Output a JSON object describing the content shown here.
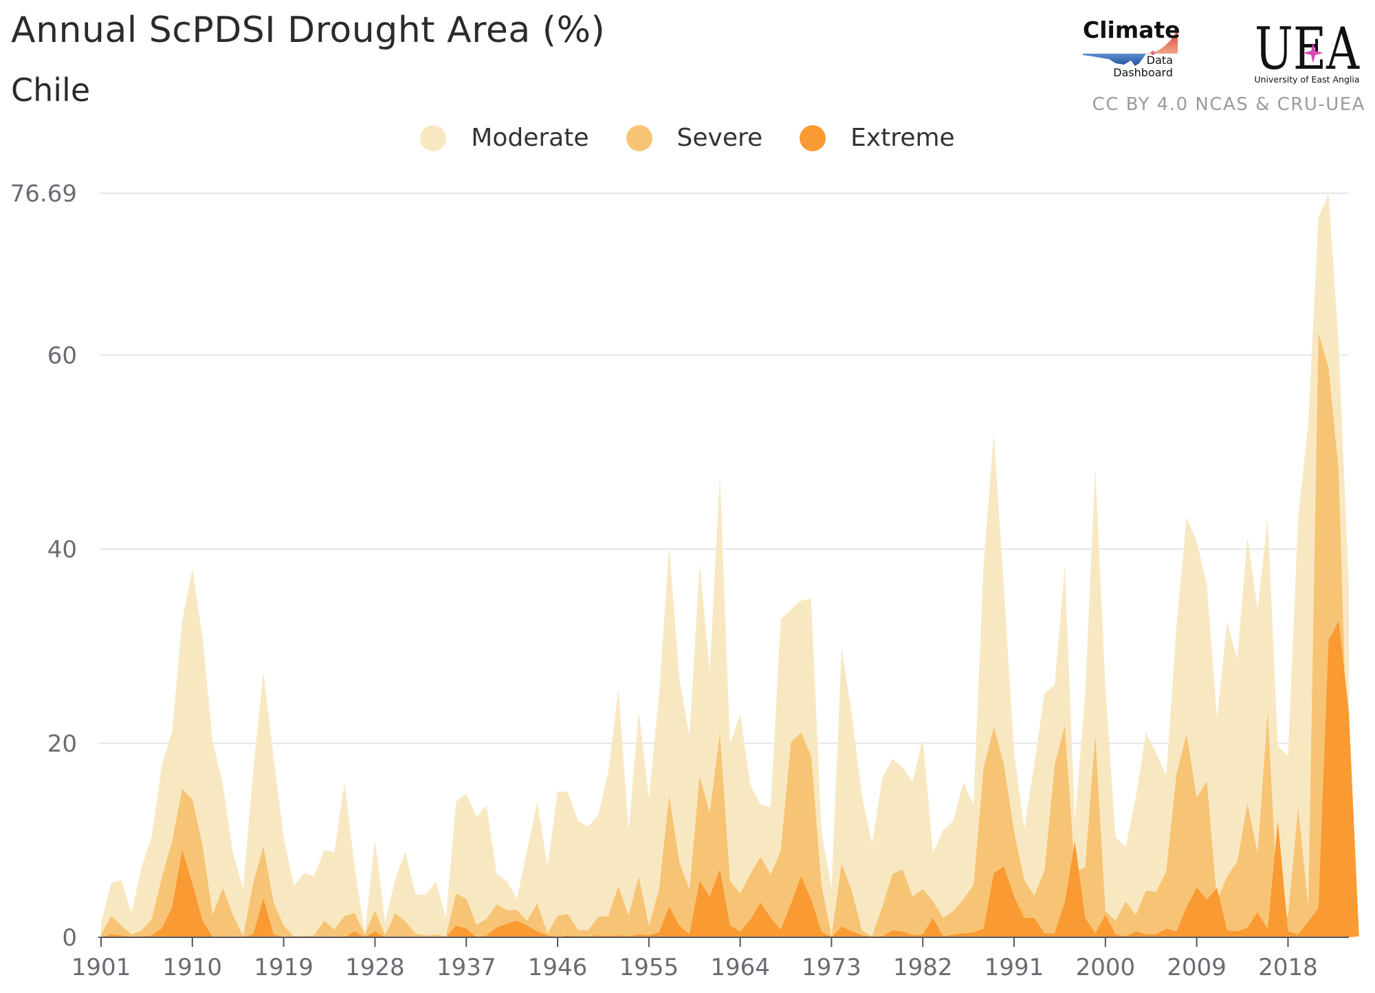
{
  "header": {
    "title": "Annual ScPDSI Drought Area (%)",
    "subtitle": "Chile",
    "credit": "CC BY 4.0 NCAS & CRU-UEA"
  },
  "logos": {
    "climate_word": "Climate",
    "data_word": "Data",
    "dashboard_word": "Dashboard",
    "uea_letters": "UEA",
    "uea_caption": "University of East Anglia"
  },
  "chart_data": {
    "type": "area",
    "title": "Annual ScPDSI Drought Area (%)",
    "subtitle": "Chile",
    "xlabel": "",
    "ylabel": "",
    "ylim": [
      0,
      76.69
    ],
    "yticks": [
      0,
      20,
      40,
      60,
      76.69
    ],
    "ytick_labels": [
      "0",
      "20",
      "40",
      "60",
      "76.69"
    ],
    "xticks": [
      1901,
      1910,
      1919,
      1928,
      1937,
      1946,
      1955,
      1964,
      1973,
      1982,
      1991,
      2000,
      2009,
      2018
    ],
    "xtick_labels": [
      "1901",
      "1910",
      "1919",
      "1928",
      "1937",
      "1946",
      "1955",
      "1964",
      "1973",
      "1982",
      "1991",
      "2000",
      "2009",
      "2018"
    ],
    "legend_position": "top-center",
    "grid": true,
    "colors": {
      "Moderate": "#f8e8c2",
      "Severe": "#f7c475",
      "Extreme": "#f99a33"
    },
    "start_year": 1901,
    "series": [
      {
        "name": "Moderate",
        "values": [
          1.5,
          5.6,
          5.9,
          2.5,
          7.3,
          10.4,
          17.8,
          21.2,
          32.6,
          38.0,
          30.9,
          20.2,
          15.8,
          8.7,
          5.0,
          17.2,
          27.4,
          18.6,
          10.3,
          5.3,
          6.6,
          6.3,
          9.0,
          8.8,
          16.0,
          7.2,
          0.5,
          10.0,
          1.6,
          6.0,
          8.8,
          4.4,
          4.4,
          5.7,
          2.0,
          14.0,
          14.8,
          12.4,
          13.6,
          6.5,
          5.8,
          4.0,
          9.0,
          14.0,
          7.3,
          15.0,
          15.0,
          12.0,
          11.4,
          12.6,
          17.0,
          25.6,
          11.0,
          23.3,
          14.3,
          25.0,
          40.3,
          26.7,
          20.7,
          38.4,
          27.5,
          47.6,
          19.9,
          23.0,
          15.7,
          13.7,
          13.4,
          32.8,
          33.8,
          34.7,
          34.9,
          11.1,
          5.0,
          29.8,
          23.0,
          14.6,
          9.6,
          16.4,
          18.4,
          17.5,
          16.0,
          20.5,
          8.7,
          11.0,
          12.0,
          16.0,
          13.7,
          38.6,
          51.9,
          35.9,
          19.0,
          11.2,
          17.9,
          25.2,
          26.0,
          38.2,
          12.0,
          25.0,
          48.3,
          25.8,
          10.3,
          9.3,
          14.4,
          21.1,
          19.0,
          16.7,
          32.0,
          43.3,
          40.8,
          36.3,
          22.6,
          32.5,
          28.7,
          41.2,
          33.8,
          43.2,
          19.7,
          18.7,
          43.3,
          53.0,
          74.2,
          76.6,
          61.0,
          36.1
        ]
      },
      {
        "name": "Severe",
        "values": [
          0.3,
          2.2,
          1.2,
          0.3,
          0.7,
          1.9,
          6.2,
          9.9,
          15.3,
          14.2,
          9.5,
          2.3,
          5.1,
          2.3,
          0.1,
          5.6,
          9.4,
          3.6,
          1.2,
          0.1,
          0.1,
          0.2,
          1.7,
          0.8,
          2.2,
          2.5,
          0.3,
          2.8,
          0.2,
          2.5,
          1.6,
          0.4,
          0.2,
          0.3,
          0.1,
          4.5,
          4.0,
          1.3,
          1.9,
          3.4,
          2.8,
          2.8,
          1.7,
          3.5,
          0.4,
          2.2,
          2.4,
          0.8,
          0.7,
          2.1,
          2.2,
          5.3,
          2.2,
          6.3,
          1.2,
          4.9,
          14.6,
          7.8,
          4.9,
          16.6,
          12.8,
          21.1,
          5.8,
          4.5,
          6.5,
          8.3,
          6.5,
          8.9,
          20.1,
          21.1,
          18.7,
          5.5,
          0.1,
          7.6,
          4.8,
          0.7,
          0.1,
          3.1,
          6.5,
          7.0,
          4.2,
          5.0,
          3.7,
          2.0,
          2.7,
          3.9,
          5.4,
          17.5,
          21.7,
          17.8,
          10.9,
          5.9,
          4.3,
          6.9,
          17.8,
          21.8,
          6.7,
          7.2,
          20.9,
          2.7,
          1.7,
          3.7,
          2.3,
          4.8,
          4.7,
          6.8,
          16.8,
          21.0,
          14.4,
          16.1,
          3.8,
          6.3,
          7.8,
          13.8,
          8.7,
          23.3,
          2.9,
          2.2,
          13.4,
          3.1,
          62.3,
          58.7,
          48.0,
          12.6
        ]
      },
      {
        "name": "Extreme",
        "values": [
          0.0,
          0.3,
          0.2,
          0.0,
          0.1,
          0.2,
          0.9,
          3.1,
          9.0,
          5.5,
          1.7,
          0.0,
          0.0,
          0.0,
          0.0,
          0.3,
          4.0,
          0.3,
          0.0,
          0.0,
          0.0,
          0.0,
          0.0,
          0.0,
          0.0,
          0.6,
          0.0,
          0.6,
          0.0,
          0.0,
          0.0,
          0.0,
          0.0,
          0.0,
          0.0,
          1.2,
          0.9,
          0.0,
          0.2,
          1.0,
          1.4,
          1.7,
          1.2,
          0.6,
          0.2,
          0.0,
          0.2,
          0.1,
          0.1,
          0.2,
          0.1,
          0.2,
          0.1,
          0.3,
          0.2,
          0.5,
          3.2,
          1.2,
          0.3,
          5.8,
          4.2,
          7.0,
          1.2,
          0.6,
          1.8,
          3.6,
          2.0,
          0.8,
          3.4,
          6.3,
          3.9,
          0.6,
          0.0,
          1.1,
          0.6,
          0.2,
          0.0,
          0.1,
          0.7,
          0.6,
          0.2,
          0.3,
          2.0,
          0.1,
          0.3,
          0.4,
          0.5,
          0.9,
          6.6,
          7.3,
          4.2,
          2.0,
          2.0,
          0.4,
          0.4,
          3.6,
          9.9,
          2.0,
          0.4,
          2.3,
          0.3,
          0.1,
          0.6,
          0.3,
          0.3,
          0.9,
          0.6,
          3.1,
          5.1,
          3.9,
          5.1,
          0.7,
          0.6,
          1.0,
          2.6,
          0.8,
          12.0,
          0.6,
          0.3,
          1.6,
          3.0,
          30.6,
          32.6,
          23.2,
          0.1
        ]
      }
    ]
  }
}
